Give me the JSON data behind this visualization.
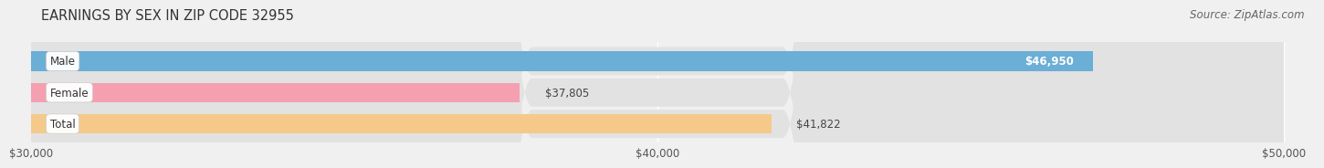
{
  "title": "EARNINGS BY SEX IN ZIP CODE 32955",
  "source": "Source: ZipAtlas.com",
  "categories": [
    "Total",
    "Female",
    "Male"
  ],
  "values": [
    41822,
    37805,
    46950
  ],
  "bar_colors": [
    "#f5c98a",
    "#f4a0b0",
    "#6baed6"
  ],
  "value_labels": [
    "$41,822",
    "$37,805",
    "$46,950"
  ],
  "value_label_inside": [
    false,
    false,
    true
  ],
  "xlim": [
    30000,
    50000
  ],
  "xticks": [
    30000,
    40000,
    50000
  ],
  "xtick_labels": [
    "$30,000",
    "$40,000",
    "$50,000"
  ],
  "background_color": "#f0f0f0",
  "bar_bg_color": "#e2e2e2",
  "title_fontsize": 10.5,
  "source_fontsize": 8.5,
  "label_fontsize": 8.5,
  "value_fontsize": 8.5,
  "tick_fontsize": 8.5,
  "bar_height": 0.62,
  "fig_width": 14.06,
  "fig_height": 1.96
}
